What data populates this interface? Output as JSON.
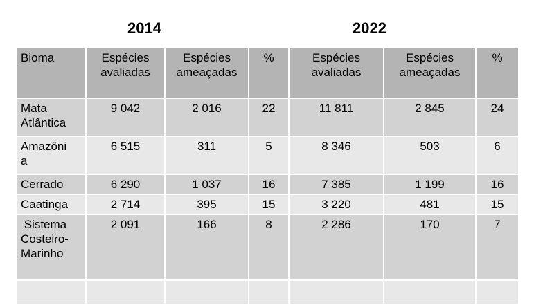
{
  "years": {
    "first": "2014",
    "second": "2022"
  },
  "headers": {
    "bioma": "Bioma",
    "avaliadas_line1": "Espécies",
    "avaliadas_line2": "avaliadas",
    "ameacadas_line1": "Espécies",
    "ameacadas_line2": "ameaçadas",
    "pct": "%"
  },
  "rows": [
    {
      "bioma": [
        "Mata",
        "Atlântica"
      ],
      "av2014": "9 042",
      "am2014": "2 016",
      "p2014": "22",
      "av2022": "11 811",
      "am2022": "2 845",
      "p2022": "24"
    },
    {
      "bioma": [
        "Amazôni",
        "a"
      ],
      "av2014": "6 515",
      "am2014": "311",
      "p2014": "5",
      "av2022": "8 346",
      "am2022": "503",
      "p2022": "6"
    },
    {
      "bioma": [
        "Cerrado"
      ],
      "av2014": "6 290",
      "am2014": "1 037",
      "p2014": "16",
      "av2022": "7 385",
      "am2022": "1 199",
      "p2022": "16"
    },
    {
      "bioma": [
        "Caatinga"
      ],
      "av2014": "2 714",
      "am2014": "395",
      "p2014": "15",
      "av2022": "3 220",
      "am2022": "481",
      "p2022": "15"
    },
    {
      "bioma": [
        " Sistema",
        "Costeiro-",
        "Marinho"
      ],
      "av2014": "2 091",
      "am2014": "166",
      "p2014": "8",
      "av2022": "2 286",
      "am2022": "170",
      "p2022": "7"
    }
  ]
}
